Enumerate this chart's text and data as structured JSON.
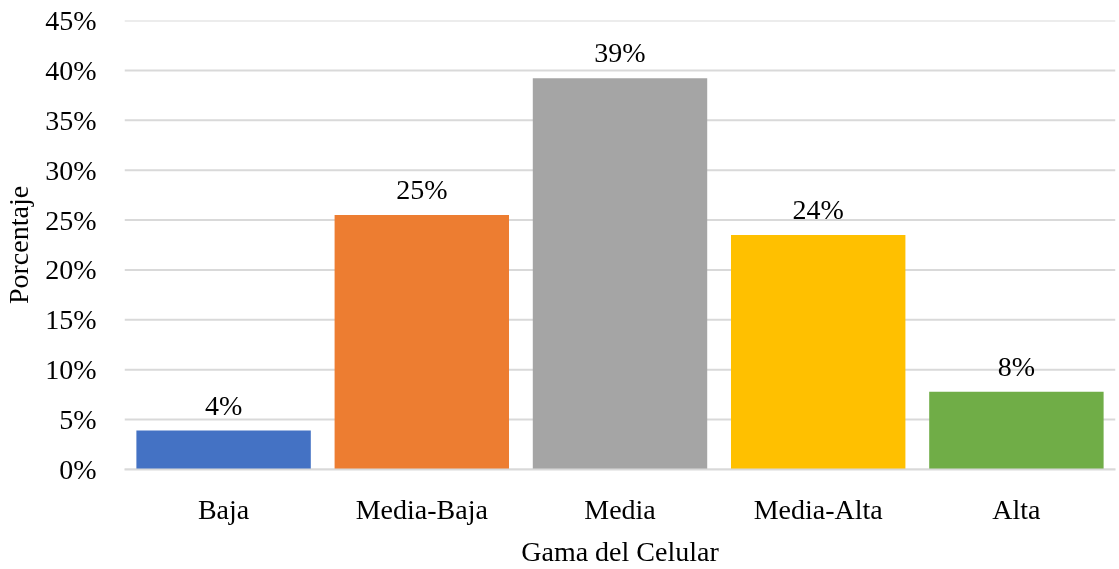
{
  "chart_data": {
    "type": "bar",
    "categories": [
      "Baja",
      "Media-Baja",
      "Media",
      "Media-Alta",
      "Alta"
    ],
    "values": [
      3.9,
      25.5,
      39.2,
      23.5,
      7.8
    ],
    "value_labels": [
      "4%",
      "25%",
      "39%",
      "24%",
      "8%"
    ],
    "colors": [
      "#4472c4",
      "#ed7d31",
      "#a5a5a5",
      "#ffc000",
      "#70ad47"
    ],
    "ylim": [
      0,
      45
    ],
    "yticks": [
      {
        "value": 0,
        "label": "0%"
      },
      {
        "value": 5,
        "label": "5%"
      },
      {
        "value": 10,
        "label": "10%"
      },
      {
        "value": 15,
        "label": "15%"
      },
      {
        "value": 20,
        "label": "20%"
      },
      {
        "value": 25,
        "label": "25%"
      },
      {
        "value": 30,
        "label": "30%"
      },
      {
        "value": 35,
        "label": "35%"
      },
      {
        "value": 40,
        "label": "40%"
      },
      {
        "value": 45,
        "label": "45%"
      }
    ],
    "grid": "y",
    "xlabel": "Gama del Celular",
    "ylabel": "Porcentaje"
  }
}
